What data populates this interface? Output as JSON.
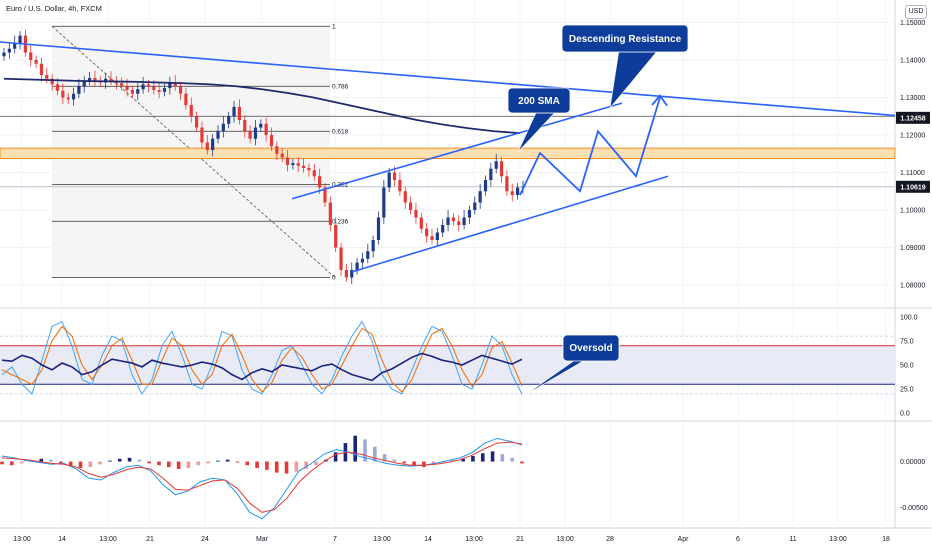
{
  "chart_title": "Euro / U.S. Dollar, 4h, FXCM",
  "currency_badge": "USD",
  "colors": {
    "bull": "#1e3a8a",
    "bear": "#e53935",
    "sma": "#1f2a6b",
    "annotation": "#2962ff",
    "callout_bg": "#0d3c9b",
    "zone": "#ffe0b2",
    "zone_border": "#f57c00"
  },
  "chart_data": [
    {
      "type": "candlestick",
      "symbol": "EUR/USD",
      "timeframe": "4h",
      "ylim": [
        1.076,
        1.156
      ],
      "y_ticks": [
        "1.15000",
        "1.14000",
        "1.13000",
        "1.12000",
        "1.11000",
        "1.10000",
        "1.09000",
        "1.08000"
      ],
      "y_tick_values": [
        1.15,
        1.14,
        1.13,
        1.12,
        1.11,
        1.1,
        1.09,
        1.08
      ],
      "x_ticks": [
        "13:00",
        "14",
        "13:00",
        "21",
        "24",
        "Mar",
        "7",
        "13:00",
        "14",
        "13:00",
        "21",
        "13:00",
        "28",
        "Apr",
        "6",
        "11",
        "13:00",
        "18"
      ],
      "ohlc_close_path": [
        1.142,
        1.143,
        1.1445,
        1.1465,
        1.142,
        1.14,
        1.139,
        1.136,
        1.135,
        1.1335,
        1.1318,
        1.13,
        1.1295,
        1.131,
        1.133,
        1.1345,
        1.1352,
        1.1345,
        1.134,
        1.135,
        1.1345,
        1.1338,
        1.133,
        1.132,
        1.131,
        1.1322,
        1.1335,
        1.133,
        1.132,
        1.1315,
        1.1325,
        1.134,
        1.133,
        1.131,
        1.128,
        1.125,
        1.122,
        1.118,
        1.116,
        1.119,
        1.121,
        1.123,
        1.125,
        1.1275,
        1.124,
        1.121,
        1.119,
        1.122,
        1.123,
        1.12,
        1.117,
        1.115,
        1.114,
        1.112,
        1.1125,
        1.1118,
        1.1112,
        1.1106,
        1.109,
        1.106,
        1.102,
        1.096,
        1.09,
        1.084,
        1.082,
        1.084,
        1.086,
        1.087,
        1.089,
        1.092,
        1.098,
        1.106,
        1.11,
        1.108,
        1.105,
        1.102,
        1.1,
        1.098,
        1.095,
        1.093,
        1.092,
        1.094,
        1.096,
        1.098,
        1.097,
        1.096,
        1.098,
        1.1,
        1.102,
        1.105,
        1.108,
        1.111,
        1.113,
        1.109,
        1.105,
        1.104,
        1.106,
        1.1062
      ],
      "sma200_path": [
        1.135,
        1.1348,
        1.1346,
        1.1344,
        1.1343,
        1.1342,
        1.134,
        1.1338,
        1.1335,
        1.133,
        1.1322,
        1.1312,
        1.13,
        1.1285,
        1.127,
        1.1255,
        1.124,
        1.1228,
        1.1218,
        1.121,
        1.1205
      ],
      "annotations": {
        "current_price": "1.10619",
        "current_price_value": 1.10619,
        "resistance_price": "1.12458",
        "resistance_price_value": 1.12458,
        "fib_levels": [
          {
            "label": "1",
            "value": 1.149
          },
          {
            "label": "0.786",
            "value": 1.133
          },
          {
            "label": "0.618",
            "value": 1.121
          },
          {
            "label": "0.5",
            "value": 1.115
          },
          {
            "label": "0.382",
            "value": 1.1068
          },
          {
            "label": "0.236",
            "value": 1.097
          },
          {
            "label": "0",
            "value": 1.082
          }
        ],
        "supply_zone": [
          1.1137,
          1.1165
        ],
        "horizontal_line": 1.125,
        "callouts": [
          "Descending Resistance",
          "200 SMA"
        ]
      }
    },
    {
      "type": "line",
      "name": "Stochastic RSI",
      "ylim": [
        -5,
        105
      ],
      "y_ticks": [
        "100.0",
        "75.0",
        "50.0",
        "25.0",
        "0.0"
      ],
      "y_tick_values": [
        100,
        75,
        50,
        25,
        0
      ],
      "bands": {
        "upper": 70,
        "lower": 30
      },
      "rsi_path": [
        55,
        54,
        60,
        57,
        50,
        45,
        52,
        48,
        40,
        43,
        50,
        56,
        54,
        52,
        48,
        55,
        52,
        50,
        48,
        50,
        53,
        51,
        47,
        40,
        35,
        42,
        46,
        43,
        50,
        48,
        46,
        44,
        49,
        51,
        45,
        40,
        37,
        34,
        42,
        46,
        52,
        58,
        62,
        59,
        55,
        53,
        50,
        55,
        60,
        57,
        54,
        51,
        56
      ],
      "k_path": [
        40,
        48,
        30,
        20,
        55,
        90,
        95,
        70,
        35,
        30,
        60,
        80,
        75,
        40,
        20,
        35,
        70,
        85,
        60,
        30,
        25,
        50,
        85,
        80,
        45,
        25,
        20,
        40,
        65,
        70,
        50,
        30,
        20,
        35,
        60,
        80,
        95,
        75,
        40,
        25,
        20,
        45,
        70,
        90,
        85,
        60,
        30,
        25,
        50,
        80,
        70,
        40,
        20
      ],
      "d_path": [
        45,
        40,
        35,
        30,
        45,
        75,
        90,
        80,
        50,
        35,
        50,
        70,
        78,
        55,
        30,
        30,
        55,
        78,
        70,
        45,
        30,
        40,
        70,
        82,
        60,
        35,
        22,
        32,
        55,
        68,
        58,
        40,
        25,
        30,
        50,
        70,
        88,
        82,
        55,
        32,
        22,
        35,
        60,
        82,
        88,
        70,
        45,
        28,
        40,
        68,
        74,
        52,
        28
      ],
      "callout": "Oversold"
    },
    {
      "type": "bar",
      "name": "MACD",
      "ylim": [
        -0.0072,
        0.0045
      ],
      "y_ticks": [
        "0.00000",
        "-0.00500"
      ],
      "y_tick_values": [
        0.0,
        -0.005
      ],
      "histogram": [
        -0.0003,
        -0.0004,
        -0.0002,
        0.0001,
        0.0003,
        0.0002,
        -0.0002,
        -0.0005,
        -0.0007,
        -0.0006,
        -0.0003,
        0.0001,
        0.0003,
        0.0004,
        0.0002,
        -0.0002,
        -0.0004,
        -0.0006,
        -0.0008,
        -0.0007,
        -0.0004,
        -0.0002,
        0.0001,
        0.0002,
        -0.0001,
        -0.0004,
        -0.0007,
        -0.0009,
        -0.0012,
        -0.0013,
        -0.0011,
        -0.0008,
        -0.0004,
        0.0002,
        0.001,
        0.002,
        0.0028,
        0.0024,
        0.0016,
        0.0008,
        0.0002,
        -0.0002,
        -0.0005,
        -0.0006,
        -0.0003,
        -0.0001,
        0.0001,
        0.0003,
        0.0006,
        0.0009,
        0.0011,
        0.0008,
        0.0004,
        -0.0002
      ],
      "macd_path": [
        0.0006,
        0.0004,
        0.0001,
        -0.0001,
        -0.0003,
        -0.0002,
        -0.0008,
        -0.0018,
        -0.002,
        -0.0012,
        -0.0006,
        -0.0004,
        -0.001,
        -0.0025,
        -0.0036,
        -0.0032,
        -0.0022,
        -0.0018,
        -0.002,
        -0.0035,
        -0.0055,
        -0.0062,
        -0.005,
        -0.003,
        -0.001,
        -0.0002,
        0.0008,
        0.0013,
        0.001,
        0.0005,
        0.0002,
        -0.0002,
        -0.0004,
        -0.0005,
        -0.0004,
        -0.0002,
        0.0001,
        0.0004,
        0.001,
        0.002,
        0.0025,
        0.0022,
        0.0018
      ],
      "signal_path": [
        0.0004,
        0.0003,
        0.0002,
        0.0,
        -0.0002,
        -0.0003,
        -0.0006,
        -0.0013,
        -0.0017,
        -0.0014,
        -0.0009,
        -0.0006,
        -0.0008,
        -0.0018,
        -0.003,
        -0.0031,
        -0.0026,
        -0.0021,
        -0.002,
        -0.0029,
        -0.0045,
        -0.0055,
        -0.0052,
        -0.004,
        -0.0022,
        -0.001,
        0.0,
        0.0008,
        0.001,
        0.0008,
        0.0004,
        0.0001,
        -0.0002,
        -0.0004,
        -0.0004,
        -0.0003,
        -0.0001,
        0.0002,
        0.0007,
        0.0014,
        0.002,
        0.0021,
        0.0019
      ]
    }
  ]
}
